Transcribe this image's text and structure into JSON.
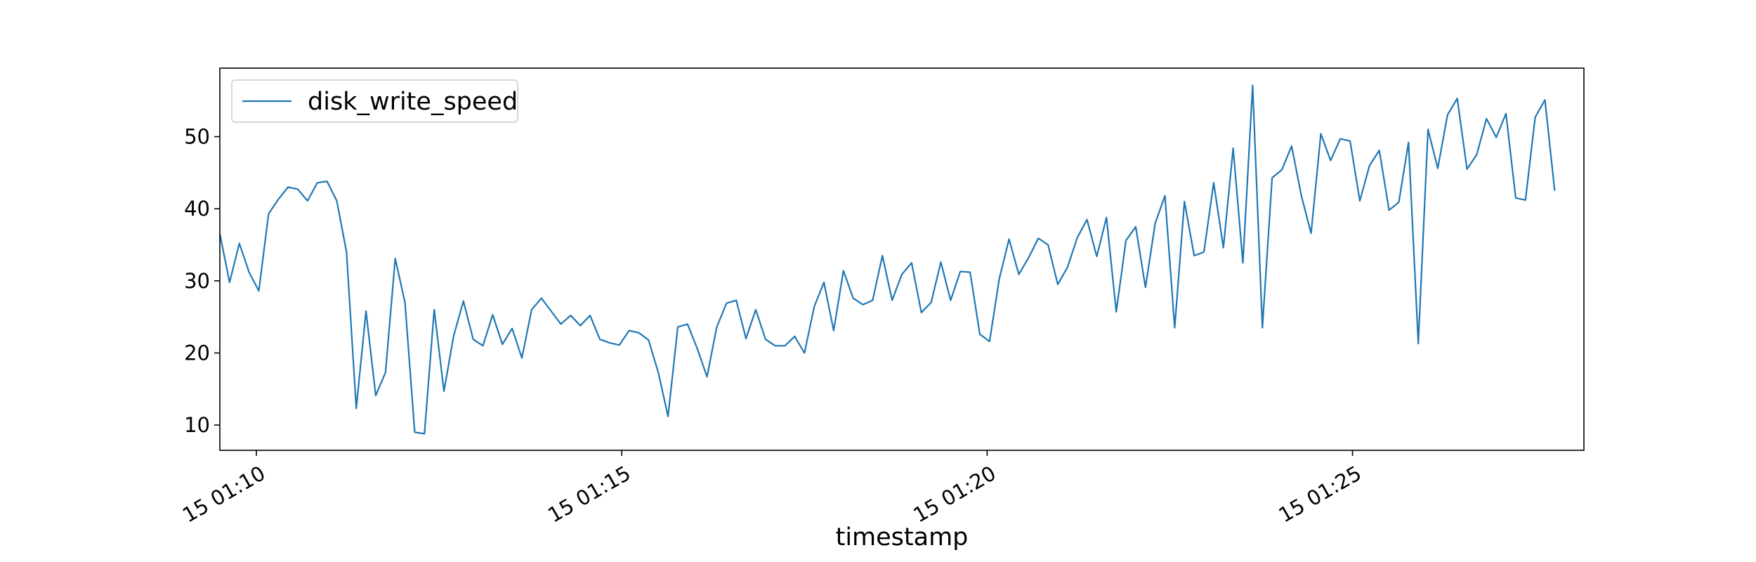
{
  "chart_data": {
    "type": "line",
    "title": "",
    "xlabel": "timestamp",
    "ylabel": "",
    "legend_position": "top-left",
    "grid": false,
    "series_color": "#1f77b4",
    "x_start_label": "15 01:09:30",
    "x_step_seconds": 8,
    "xlim_seconds": [
      0,
      1120
    ],
    "x_ticks": [
      {
        "label": "15 01:10",
        "seconds": 30
      },
      {
        "label": "15 01:15",
        "seconds": 330
      },
      {
        "label": "15 01:20",
        "seconds": 630
      },
      {
        "label": "15 01:25",
        "seconds": 930
      }
    ],
    "ylim": [
      6.5,
      59.5
    ],
    "y_ticks": [
      10,
      20,
      30,
      40,
      50
    ],
    "series": [
      {
        "name": "disk_write_speed",
        "values": [
          36.5,
          29.8,
          35.2,
          31.2,
          28.6,
          39.3,
          41.3,
          43.0,
          42.7,
          41.1,
          43.6,
          43.8,
          41.1,
          34.0,
          12.3,
          25.8,
          14.1,
          17.3,
          33.1,
          27.0,
          9.0,
          8.8,
          26.0,
          14.7,
          22.4,
          27.2,
          21.9,
          21.0,
          25.3,
          21.2,
          23.4,
          19.3,
          26.0,
          27.6,
          25.8,
          24.0,
          25.2,
          23.8,
          25.2,
          21.9,
          21.4,
          21.1,
          23.1,
          22.8,
          21.8,
          17.3,
          11.2,
          23.6,
          24.0,
          20.6,
          16.7,
          23.6,
          26.9,
          27.3,
          22.0,
          26.0,
          21.9,
          21.0,
          21.0,
          22.3,
          20.0,
          26.4,
          29.8,
          23.1,
          31.4,
          27.6,
          26.7,
          27.3,
          33.5,
          27.3,
          30.9,
          32.5,
          25.6,
          27.0,
          32.6,
          27.3,
          31.3,
          31.2,
          22.6,
          21.6,
          30.3,
          35.8,
          30.9,
          33.2,
          35.9,
          35.0,
          29.5,
          31.9,
          36.0,
          38.5,
          33.4,
          38.8,
          25.7,
          35.6,
          37.5,
          29.1,
          38.0,
          41.8,
          23.5,
          41.0,
          33.5,
          34.0,
          43.6,
          34.6,
          48.4,
          32.5,
          57.1,
          23.5,
          44.3,
          45.4,
          48.7,
          41.8,
          36.6,
          50.4,
          46.7,
          49.7,
          49.4,
          41.1,
          46.0,
          48.1,
          39.8,
          40.9,
          49.2,
          21.3,
          51.0,
          45.6,
          53.0,
          55.3,
          45.5,
          47.5,
          52.5,
          49.9,
          53.2,
          41.5,
          41.2,
          52.7,
          55.1,
          42.5
        ]
      }
    ]
  }
}
